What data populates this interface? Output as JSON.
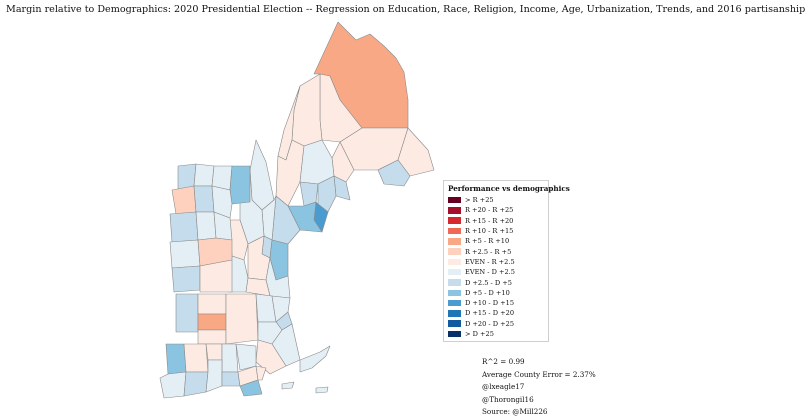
{
  "title": "Margin relative to Demographics: 2020 Presidential Election -- Regression on Education, Race, Religion, Income, Age, Urbanization, Trends, and 2016 partisanship",
  "colors": {
    "R_over_25": "#67001f",
    "R_20_25": "#a50f2a",
    "R_15_20": "#d6292e",
    "R_10_15": "#ee6a55",
    "R_5_10": "#f9a886",
    "R_2_5": "#fdd1bd",
    "EVEN_R": "#fdebe3",
    "EVEN_D": "#e4eef5",
    "D_2_5": "#c4dceb",
    "D_5_10": "#8bc4e0",
    "D_10_15": "#4a9cd0",
    "D_15_20": "#1f76b6",
    "D_20_25": "#115aa0",
    "D_over_25": "#08306b",
    "border": "#8a8a8a"
  },
  "legend": {
    "title": "Performance vs demographics",
    "items": [
      {
        "label": "> R +25",
        "color": "#67001f"
      },
      {
        "label": "R +20 - R +25",
        "color": "#a50f2a"
      },
      {
        "label": "R +15 - R +20",
        "color": "#d6292e"
      },
      {
        "label": "R +10 - R +15",
        "color": "#ee6a55"
      },
      {
        "label": "R +5 - R +10",
        "color": "#f9a886"
      },
      {
        "label": "R +2.5 - R +5",
        "color": "#fdd1bd"
      },
      {
        "label": "EVEN - R +2.5",
        "color": "#fdebe3"
      },
      {
        "label": "EVEN - D +2.5",
        "color": "#e4eef5"
      },
      {
        "label": "D +2.5 - D +5",
        "color": "#c4dceb"
      },
      {
        "label": "D +5 - D +10",
        "color": "#8bc4e0"
      },
      {
        "label": "D +10 - D +15",
        "color": "#4a9cd0"
      },
      {
        "label": "D +15 - D +20",
        "color": "#1f76b6"
      },
      {
        "label": "D +20 - D +25",
        "color": "#115aa0"
      },
      {
        "label": "> D +25",
        "color": "#08306b"
      }
    ]
  },
  "notes": {
    "r2": "R^2 = 0.99",
    "error": "Average County Error = 2.37%",
    "credit1": "@lxeagle17",
    "credit2": "@Thorongil16",
    "source": "Source: @Mill226"
  }
}
